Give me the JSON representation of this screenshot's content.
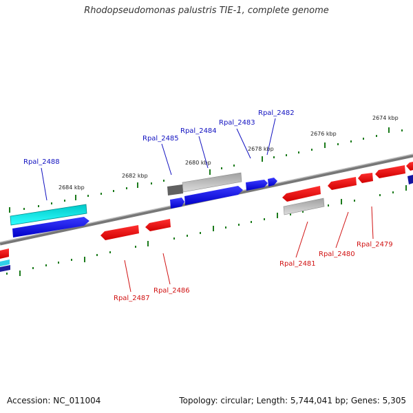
{
  "title": "Rhodopseudomonas palustris TIE-1, complete genome",
  "footer": {
    "accession": "Accession: NC_011004",
    "summary": "Topology: circular; Length: 5,744,041 bp; Genes: 5,305"
  },
  "colors": {
    "forward_gene": "#0000ee",
    "reverse_gene": "#ee0000",
    "rna_gene": "#22e5ee",
    "pseudo_gene": "#c0c0c0",
    "backbone": "#888888",
    "tick": "#1a7a1a",
    "forward_label": "#1010c0",
    "reverse_label": "#d01010"
  },
  "kbp_labels": [
    {
      "text": "2684 kbp"
    },
    {
      "text": "2682 kbp"
    },
    {
      "text": "2680 kbp"
    },
    {
      "text": "2678 kbp"
    },
    {
      "text": "2676 kbp"
    },
    {
      "text": "2674 kbp"
    }
  ],
  "gene_labels": [
    {
      "text": "Rpal_2488",
      "strand": "forward"
    },
    {
      "text": "Rpal_2485",
      "strand": "forward"
    },
    {
      "text": "Rpal_2484",
      "strand": "forward"
    },
    {
      "text": "Rpal_2483",
      "strand": "forward"
    },
    {
      "text": "Rpal_2482",
      "strand": "forward"
    },
    {
      "text": "Rpal_2487",
      "strand": "reverse"
    },
    {
      "text": "Rpal_2486",
      "strand": "reverse"
    },
    {
      "text": "Rpal_2481",
      "strand": "reverse"
    },
    {
      "text": "Rpal_2480",
      "strand": "reverse"
    },
    {
      "text": "Rpal_2479",
      "strand": "reverse"
    }
  ]
}
